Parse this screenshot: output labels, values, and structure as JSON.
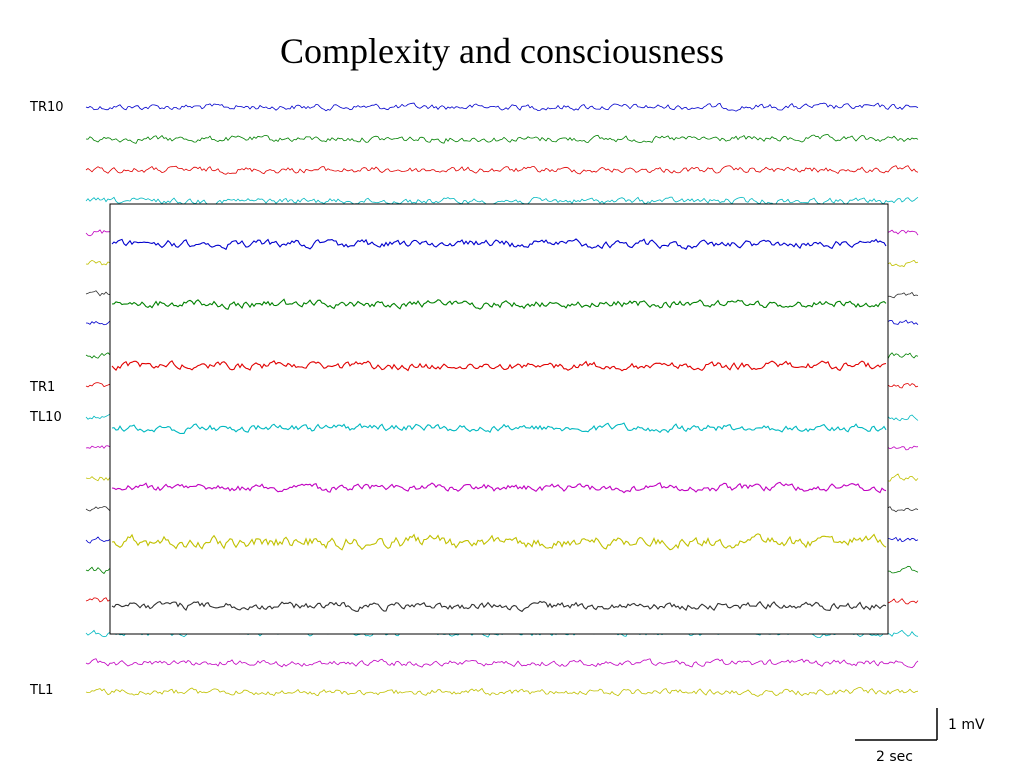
{
  "title": "Complexity and consciousness",
  "channel_labels": {
    "top": "TR10",
    "mid_right": "TR1",
    "mid_left": "TL10",
    "bottom": "TL1"
  },
  "scale_bar": {
    "amplitude": "1 mV",
    "time": "2 sec"
  },
  "trace_colors": [
    "#0000cc",
    "#008000",
    "#e00000",
    "#00b8c0",
    "#c000c0",
    "#c0c000",
    "#303030"
  ]
}
